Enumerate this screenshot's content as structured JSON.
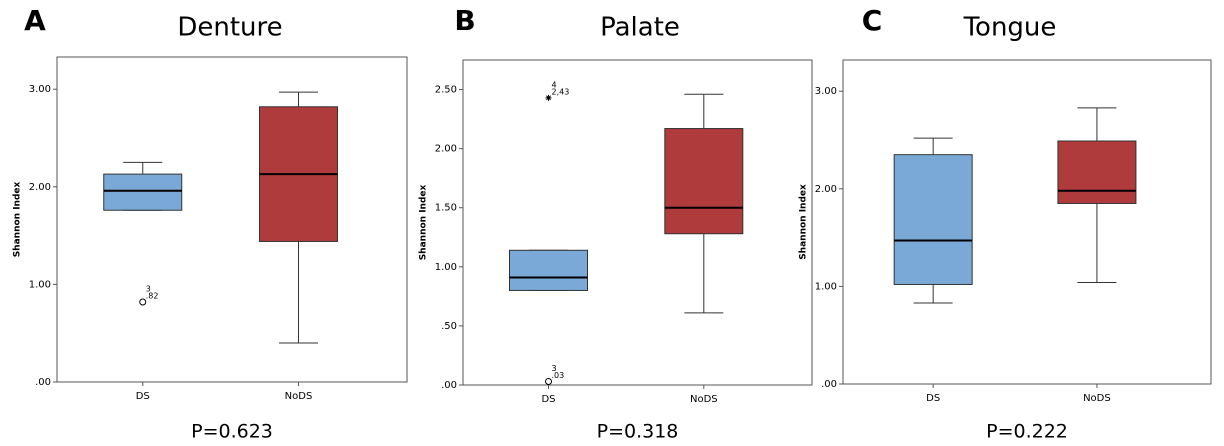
{
  "chart_data": [
    {
      "type": "box",
      "panel": "A",
      "title": "Denture",
      "ylabel": "Shannon Index",
      "footnote": "P=0.623",
      "categories": [
        "DS",
        "NoDS"
      ],
      "colors": [
        "#7ba9d7",
        "#b03b3c"
      ],
      "boxes": [
        {
          "min": 1.76,
          "q1": 1.76,
          "median": 1.96,
          "q3": 2.13,
          "max": 2.25,
          "outliers": [
            {
              "value": 0.82,
              "label": ".82",
              "case": "3",
              "marker": "circle"
            }
          ]
        },
        {
          "min": 0.4,
          "q1": 1.44,
          "median": 2.13,
          "q3": 2.82,
          "max": 2.97,
          "outliers": []
        }
      ],
      "ylim": [
        0,
        3.33
      ],
      "yticks": [
        {
          "value": 0,
          "label": ".00"
        },
        {
          "value": 1,
          "label": "1.00"
        },
        {
          "value": 2,
          "label": "2.00"
        },
        {
          "value": 3,
          "label": "3.00"
        }
      ]
    },
    {
      "type": "box",
      "panel": "B",
      "title": "Palate",
      "ylabel": "Shannon Index",
      "footnote": "P=0.318",
      "categories": [
        "DS",
        "NoDS"
      ],
      "colors": [
        "#7ba9d7",
        "#b03b3c"
      ],
      "boxes": [
        {
          "min": 0.8,
          "q1": 0.8,
          "median": 0.91,
          "q3": 1.14,
          "max": 1.14,
          "outliers": [
            {
              "value": 2.43,
              "label": "2,43",
              "case": "4",
              "marker": "star"
            },
            {
              "value": 0.03,
              "label": ".03",
              "case": "3",
              "marker": "circle"
            }
          ]
        },
        {
          "min": 0.61,
          "q1": 1.28,
          "median": 1.5,
          "q3": 2.17,
          "max": 2.46,
          "outliers": []
        }
      ],
      "ylim": [
        0,
        2.75
      ],
      "yticks": [
        {
          "value": 0,
          "label": ".00"
        },
        {
          "value": 0.5,
          "label": ".50"
        },
        {
          "value": 1,
          "label": "1.00"
        },
        {
          "value": 1.5,
          "label": "1.50"
        },
        {
          "value": 2,
          "label": "2.00"
        },
        {
          "value": 2.5,
          "label": "2.50"
        }
      ]
    },
    {
      "type": "box",
      "panel": "C",
      "title": "Tongue",
      "ylabel": "Shannon Index",
      "footnote": "P=0.222",
      "categories": [
        "DS",
        "NoDS"
      ],
      "colors": [
        "#7ba9d7",
        "#b03b3c"
      ],
      "boxes": [
        {
          "min": 0.83,
          "q1": 1.02,
          "median": 1.47,
          "q3": 2.35,
          "max": 2.52,
          "outliers": []
        },
        {
          "min": 1.04,
          "q1": 1.85,
          "median": 1.98,
          "q3": 2.49,
          "max": 2.83,
          "outliers": []
        }
      ],
      "ylim": [
        0,
        3.32
      ],
      "yticks": [
        {
          "value": 0,
          "label": ".00"
        },
        {
          "value": 1,
          "label": "1.00"
        },
        {
          "value": 2,
          "label": "2.00"
        },
        {
          "value": 3,
          "label": "3.00"
        }
      ]
    }
  ]
}
